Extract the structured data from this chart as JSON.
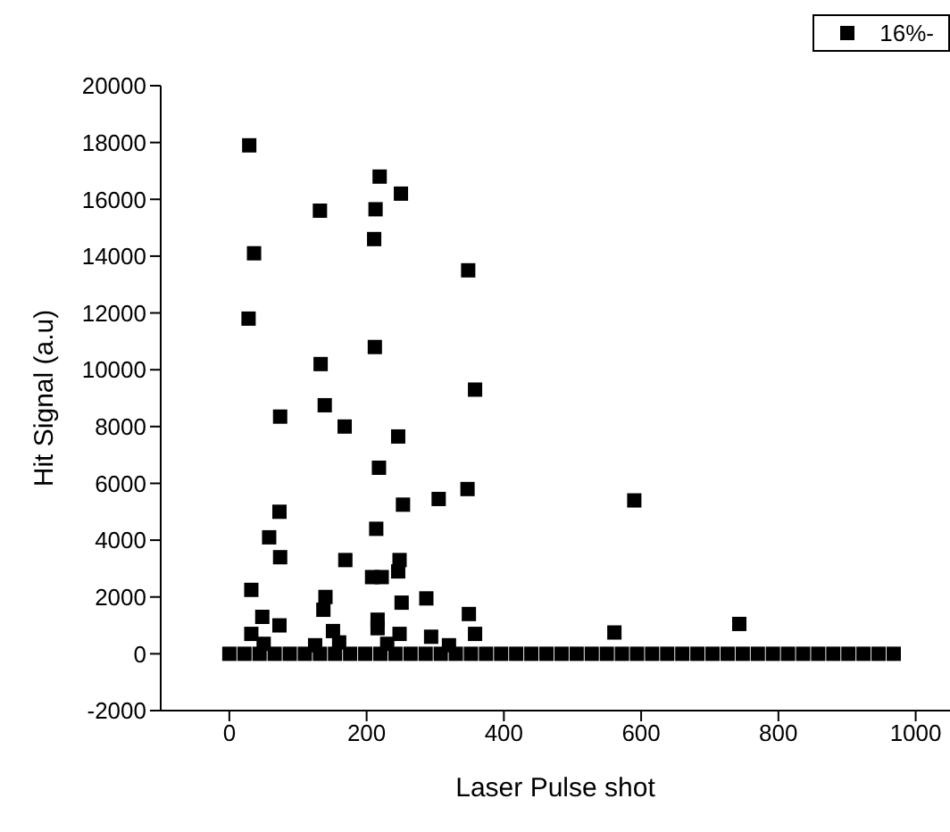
{
  "chart_data": {
    "type": "scatter",
    "xlabel": "Laser Pulse shot",
    "ylabel": "Hit Signal (a.u)",
    "xlim": [
      -100,
      1050
    ],
    "ylim": [
      -2000,
      20000
    ],
    "xticks": [
      0,
      200,
      400,
      600,
      800,
      1000
    ],
    "yticks": [
      -2000,
      0,
      2000,
      4000,
      6000,
      8000,
      10000,
      12000,
      14000,
      16000,
      18000,
      20000
    ],
    "legend": "top right",
    "marker": "square",
    "series": [
      {
        "name": "16%-",
        "color": "#000000",
        "x": [
          0,
          22,
          44,
          66,
          88,
          110,
          132,
          154,
          176,
          198,
          220,
          242,
          264,
          286,
          308,
          330,
          352,
          374,
          396,
          418,
          440,
          462,
          484,
          506,
          528,
          550,
          572,
          594,
          616,
          638,
          660,
          682,
          704,
          726,
          748,
          770,
          792,
          814,
          836,
          858,
          880,
          902,
          924,
          946,
          968,
          29,
          219,
          250,
          132,
          213,
          211,
          36,
          348,
          28,
          212,
          133,
          358,
          139,
          74,
          168,
          246,
          218,
          253,
          305,
          347,
          590,
          73,
          58,
          214,
          74,
          169,
          248,
          246,
          208,
          222,
          32,
          140,
          137,
          287,
          251,
          349,
          48,
          73,
          216,
          216,
          358,
          561,
          743,
          248,
          151,
          32,
          294,
          50,
          125,
          160,
          230,
          320
        ],
        "values": [
          0,
          0,
          0,
          0,
          0,
          0,
          0,
          0,
          0,
          0,
          0,
          0,
          0,
          0,
          0,
          0,
          0,
          0,
          0,
          0,
          0,
          0,
          0,
          0,
          0,
          0,
          0,
          0,
          0,
          0,
          0,
          0,
          0,
          0,
          0,
          0,
          0,
          0,
          0,
          0,
          0,
          0,
          0,
          0,
          0,
          17900,
          16800,
          16200,
          15600,
          15650,
          14600,
          14100,
          13500,
          11800,
          10800,
          10200,
          9300,
          8750,
          8350,
          8000,
          7650,
          6550,
          5250,
          5450,
          5800,
          5400,
          5000,
          4100,
          4400,
          3400,
          3300,
          3300,
          2900,
          2700,
          2700,
          2250,
          2000,
          1550,
          1950,
          1800,
          1400,
          1300,
          1000,
          1200,
          900,
          700,
          750,
          1050,
          700,
          800,
          700,
          600,
          350,
          300,
          400,
          350,
          300
        ]
      }
    ]
  }
}
